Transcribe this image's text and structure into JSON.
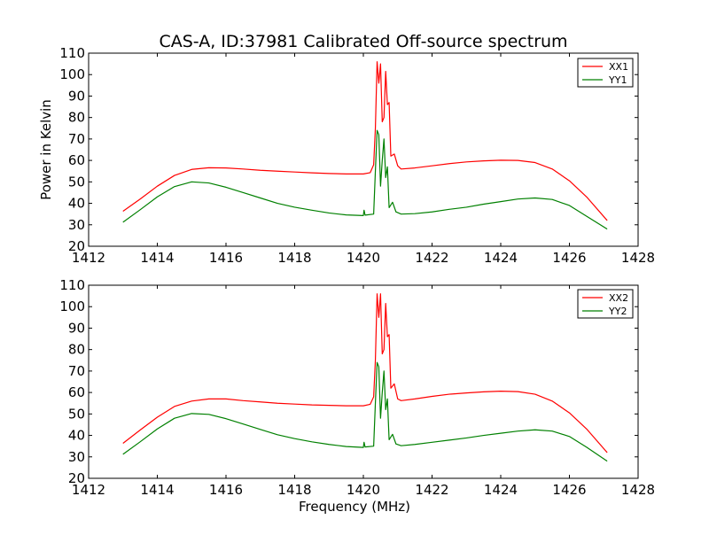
{
  "figure": {
    "title": "CAS-A, ID:37981 Calibrated Off-source spectrum"
  },
  "chart_data": [
    {
      "type": "line",
      "title": "CAS-A, ID:37981 Calibrated Off-source spectrum",
      "xlabel": "",
      "ylabel": "Power in Kelvin",
      "xlim": [
        1412,
        1428
      ],
      "ylim": [
        20,
        110
      ],
      "xticks": [
        "1412",
        "1414",
        "1416",
        "1418",
        "1420",
        "1422",
        "1424",
        "1426",
        "1428"
      ],
      "yticks": [
        "20",
        "30",
        "40",
        "50",
        "60",
        "70",
        "80",
        "90",
        "100",
        "110"
      ],
      "grid": false,
      "legend": "top-right",
      "series": [
        {
          "name": "XX1",
          "color": "#ff0000",
          "points": [
            [
              1413.0,
              36.3
            ],
            [
              1413.5,
              42.0
            ],
            [
              1414.0,
              48.0
            ],
            [
              1414.5,
              53.0
            ],
            [
              1415.0,
              55.8
            ],
            [
              1415.5,
              56.6
            ],
            [
              1416.0,
              56.5
            ],
            [
              1416.5,
              56.0
            ],
            [
              1417.0,
              55.4
            ],
            [
              1417.5,
              55.0
            ],
            [
              1418.0,
              54.6
            ],
            [
              1418.5,
              54.2
            ],
            [
              1419.0,
              53.9
            ],
            [
              1419.5,
              53.7
            ],
            [
              1420.0,
              53.7
            ],
            [
              1420.2,
              54.3
            ],
            [
              1420.3,
              58.0
            ],
            [
              1420.35,
              75.0
            ],
            [
              1420.4,
              106.0
            ],
            [
              1420.45,
              96.0
            ],
            [
              1420.5,
              105.0
            ],
            [
              1420.55,
              78.0
            ],
            [
              1420.6,
              80.0
            ],
            [
              1420.65,
              101.5
            ],
            [
              1420.7,
              86.0
            ],
            [
              1420.75,
              87.0
            ],
            [
              1420.8,
              62.0
            ],
            [
              1420.9,
              63.0
            ],
            [
              1421.0,
              57.5
            ],
            [
              1421.1,
              56.0
            ],
            [
              1421.5,
              56.5
            ],
            [
              1422.0,
              57.5
            ],
            [
              1422.5,
              58.5
            ],
            [
              1423.0,
              59.3
            ],
            [
              1423.5,
              59.8
            ],
            [
              1424.0,
              60.1
            ],
            [
              1424.5,
              60.0
            ],
            [
              1425.0,
              59.0
            ],
            [
              1425.5,
              56.0
            ],
            [
              1426.0,
              50.5
            ],
            [
              1426.5,
              43.0
            ],
            [
              1427.1,
              32.0
            ]
          ]
        },
        {
          "name": "YY1",
          "color": "#008000",
          "points": [
            [
              1413.0,
              31.2
            ],
            [
              1413.5,
              37.0
            ],
            [
              1414.0,
              43.0
            ],
            [
              1414.5,
              47.8
            ],
            [
              1415.0,
              50.0
            ],
            [
              1415.5,
              49.5
            ],
            [
              1416.0,
              47.5
            ],
            [
              1416.5,
              45.0
            ],
            [
              1417.0,
              42.5
            ],
            [
              1417.5,
              40.0
            ],
            [
              1418.0,
              38.2
            ],
            [
              1418.5,
              36.8
            ],
            [
              1419.0,
              35.5
            ],
            [
              1419.5,
              34.6
            ],
            [
              1420.0,
              34.3
            ],
            [
              1420.02,
              36.8
            ],
            [
              1420.05,
              34.5
            ],
            [
              1420.3,
              35.0
            ],
            [
              1420.35,
              55.0
            ],
            [
              1420.4,
              74.0
            ],
            [
              1420.45,
              72.0
            ],
            [
              1420.5,
              48.0
            ],
            [
              1420.55,
              60.0
            ],
            [
              1420.6,
              70.0
            ],
            [
              1420.65,
              52.0
            ],
            [
              1420.7,
              57.0
            ],
            [
              1420.75,
              38.0
            ],
            [
              1420.85,
              40.5
            ],
            [
              1420.95,
              36.0
            ],
            [
              1421.1,
              35.0
            ],
            [
              1421.5,
              35.2
            ],
            [
              1422.0,
              36.0
            ],
            [
              1422.5,
              37.2
            ],
            [
              1423.0,
              38.2
            ],
            [
              1423.5,
              39.6
            ],
            [
              1424.0,
              40.8
            ],
            [
              1424.5,
              42.0
            ],
            [
              1425.0,
              42.5
            ],
            [
              1425.5,
              41.8
            ],
            [
              1426.0,
              39.0
            ],
            [
              1426.5,
              34.0
            ],
            [
              1427.1,
              28.0
            ]
          ]
        }
      ]
    },
    {
      "type": "line",
      "title": "",
      "xlabel": "Frequency (MHz)",
      "ylabel": "",
      "xlim": [
        1412,
        1428
      ],
      "ylim": [
        20,
        110
      ],
      "xticks": [
        "1412",
        "1414",
        "1416",
        "1418",
        "1420",
        "1422",
        "1424",
        "1426",
        "1428"
      ],
      "yticks": [
        "20",
        "30",
        "40",
        "50",
        "60",
        "70",
        "80",
        "90",
        "100",
        "110"
      ],
      "grid": false,
      "legend": "top-right",
      "series": [
        {
          "name": "XX2",
          "color": "#ff0000",
          "points": [
            [
              1413.0,
              36.3
            ],
            [
              1413.5,
              42.5
            ],
            [
              1414.0,
              48.5
            ],
            [
              1414.5,
              53.5
            ],
            [
              1415.0,
              56.0
            ],
            [
              1415.5,
              57.0
            ],
            [
              1416.0,
              57.0
            ],
            [
              1416.5,
              56.2
            ],
            [
              1417.0,
              55.6
            ],
            [
              1417.5,
              55.0
            ],
            [
              1418.0,
              54.6
            ],
            [
              1418.5,
              54.2
            ],
            [
              1419.0,
              54.0
            ],
            [
              1419.5,
              53.8
            ],
            [
              1420.0,
              53.8
            ],
            [
              1420.2,
              54.5
            ],
            [
              1420.3,
              58.0
            ],
            [
              1420.35,
              75.0
            ],
            [
              1420.4,
              106.0
            ],
            [
              1420.45,
              95.0
            ],
            [
              1420.5,
              106.0
            ],
            [
              1420.55,
              78.0
            ],
            [
              1420.6,
              80.0
            ],
            [
              1420.65,
              101.5
            ],
            [
              1420.7,
              86.0
            ],
            [
              1420.75,
              87.0
            ],
            [
              1420.8,
              62.0
            ],
            [
              1420.9,
              64.0
            ],
            [
              1421.0,
              57.0
            ],
            [
              1421.1,
              56.2
            ],
            [
              1421.5,
              57.0
            ],
            [
              1422.0,
              58.2
            ],
            [
              1422.5,
              59.2
            ],
            [
              1423.0,
              59.8
            ],
            [
              1423.5,
              60.3
            ],
            [
              1424.0,
              60.6
            ],
            [
              1424.5,
              60.4
            ],
            [
              1425.0,
              59.2
            ],
            [
              1425.5,
              56.0
            ],
            [
              1426.0,
              50.5
            ],
            [
              1426.5,
              43.0
            ],
            [
              1427.1,
              32.0
            ]
          ]
        },
        {
          "name": "YY2",
          "color": "#008000",
          "points": [
            [
              1413.0,
              31.2
            ],
            [
              1413.5,
              37.0
            ],
            [
              1414.0,
              43.0
            ],
            [
              1414.5,
              48.0
            ],
            [
              1415.0,
              50.2
            ],
            [
              1415.5,
              49.8
            ],
            [
              1416.0,
              47.8
            ],
            [
              1416.5,
              45.3
            ],
            [
              1417.0,
              42.8
            ],
            [
              1417.5,
              40.3
            ],
            [
              1418.0,
              38.5
            ],
            [
              1418.5,
              37.0
            ],
            [
              1419.0,
              35.8
            ],
            [
              1419.5,
              34.8
            ],
            [
              1420.0,
              34.4
            ],
            [
              1420.02,
              36.8
            ],
            [
              1420.05,
              34.6
            ],
            [
              1420.3,
              35.0
            ],
            [
              1420.35,
              55.0
            ],
            [
              1420.4,
              74.0
            ],
            [
              1420.45,
              72.0
            ],
            [
              1420.5,
              48.0
            ],
            [
              1420.55,
              60.0
            ],
            [
              1420.6,
              70.0
            ],
            [
              1420.65,
              52.0
            ],
            [
              1420.7,
              57.0
            ],
            [
              1420.75,
              38.0
            ],
            [
              1420.85,
              40.5
            ],
            [
              1420.95,
              36.0
            ],
            [
              1421.1,
              35.2
            ],
            [
              1421.5,
              35.8
            ],
            [
              1422.0,
              36.8
            ],
            [
              1422.5,
              37.8
            ],
            [
              1423.0,
              38.8
            ],
            [
              1423.5,
              40.0
            ],
            [
              1424.0,
              41.0
            ],
            [
              1424.5,
              42.0
            ],
            [
              1425.0,
              42.6
            ],
            [
              1425.5,
              42.0
            ],
            [
              1426.0,
              39.5
            ],
            [
              1426.5,
              34.5
            ],
            [
              1427.1,
              28.0
            ]
          ]
        }
      ]
    }
  ]
}
